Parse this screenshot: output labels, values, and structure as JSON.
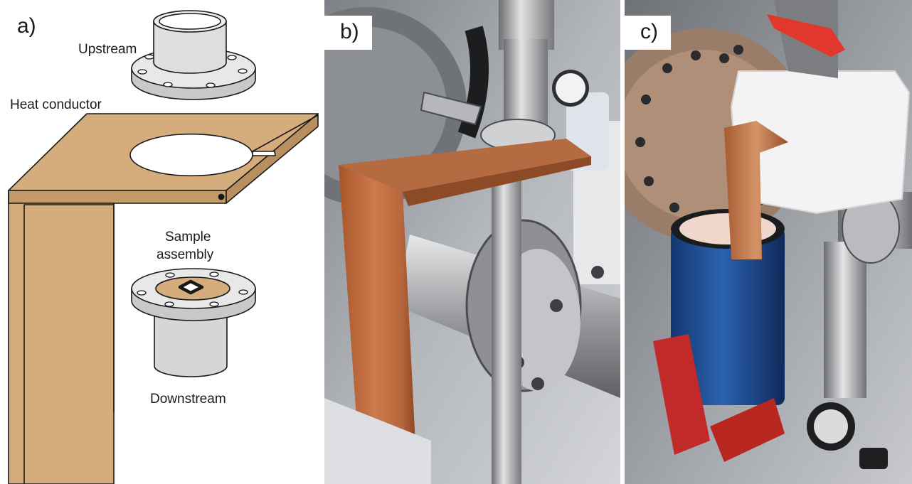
{
  "panels": {
    "a": {
      "label": "a)",
      "labels": {
        "upstream": "Upstream",
        "heat_conductor": "Heat conductor",
        "sample_line1": "Sample",
        "sample_line2": "assembly",
        "downstream": "Downstream"
      }
    },
    "b": {
      "label": "b)"
    },
    "c": {
      "label": "c)"
    }
  },
  "colors": {
    "copper": "#d5ac7c",
    "steel_light": "#e2e2e2",
    "steel_mid": "#c9c9c9",
    "outline": "#1a1a1a",
    "dewar_blue": "#1f4f95",
    "red_housing": "#c22a2a",
    "foam": "#f3f3f3"
  }
}
